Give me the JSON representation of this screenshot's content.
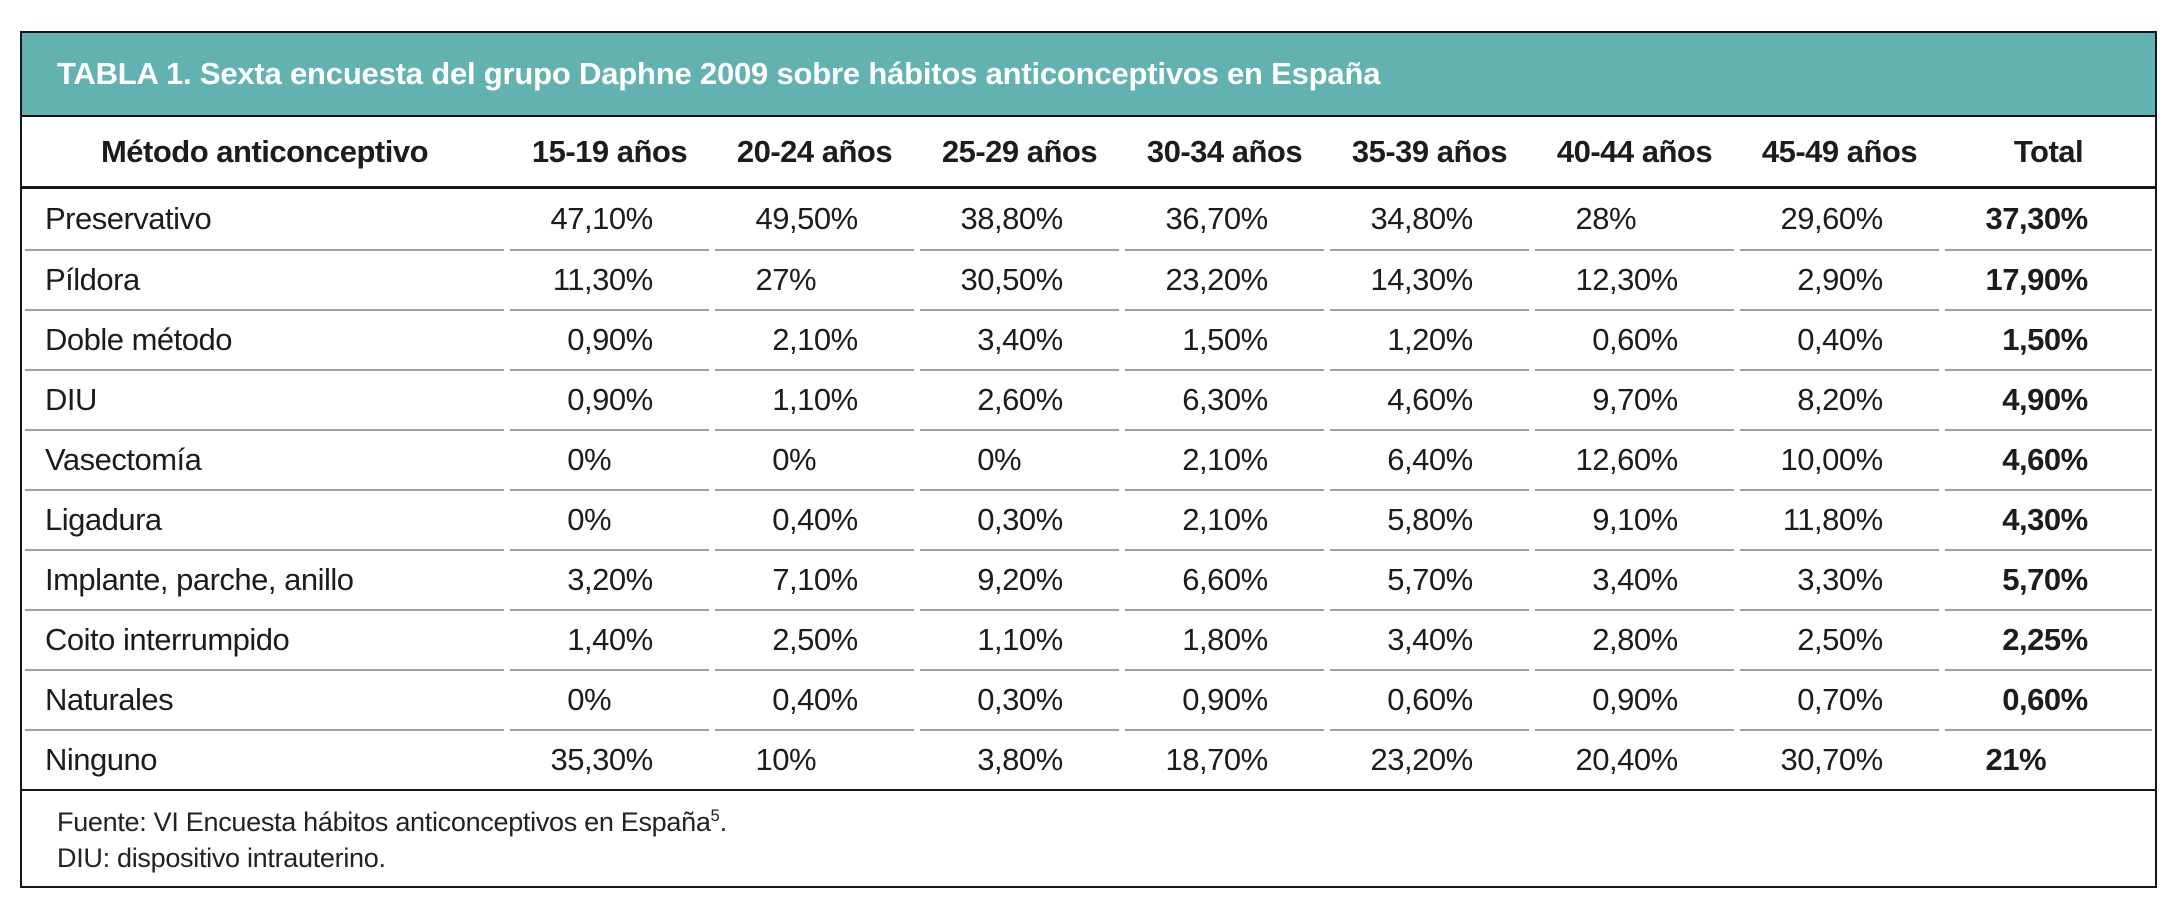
{
  "title": "TABLA 1. Sexta encuesta del grupo Daphne 2009 sobre hábitos anticonceptivos en España",
  "colors": {
    "title_band_bg": "#61b2b1",
    "title_text": "#ffffff",
    "frame_border": "#161616",
    "row_separator": "#9f9f9f",
    "body_text": "#1c1c1c"
  },
  "table": {
    "columns": [
      "Método anticonceptivo",
      "15-19 años",
      "20-24 años",
      "25-29 años",
      "30-34 años",
      "35-39 años",
      "40-44 años",
      "45-49 años",
      "Total"
    ],
    "rows": [
      {
        "label": "Preservativo",
        "values": [
          "47,10%",
          "49,50%",
          "38,80%",
          "36,70%",
          "34,80%",
          "28%",
          "29,60%",
          "37,30%"
        ]
      },
      {
        "label": "Píldora",
        "values": [
          "11,30%",
          "27%",
          "30,50%",
          "23,20%",
          "14,30%",
          "12,30%",
          "2,90%",
          "17,90%"
        ]
      },
      {
        "label": "Doble método",
        "values": [
          "0,90%",
          "2,10%",
          "3,40%",
          "1,50%",
          "1,20%",
          "0,60%",
          "0,40%",
          "1,50%"
        ]
      },
      {
        "label": "DIU",
        "values": [
          "0,90%",
          "1,10%",
          "2,60%",
          "6,30%",
          "4,60%",
          "9,70%",
          "8,20%",
          "4,90%"
        ]
      },
      {
        "label": "Vasectomía",
        "values": [
          "0%",
          "0%",
          "0%",
          "2,10%",
          "6,40%",
          "12,60%",
          "10,00%",
          "4,60%"
        ]
      },
      {
        "label": "Ligadura",
        "values": [
          "0%",
          "0,40%",
          "0,30%",
          "2,10%",
          "5,80%",
          "9,10%",
          "11,80%",
          "4,30%"
        ]
      },
      {
        "label": "Implante, parche, anillo",
        "values": [
          "3,20%",
          "7,10%",
          "9,20%",
          "6,60%",
          "5,70%",
          "3,40%",
          "3,30%",
          "5,70%"
        ]
      },
      {
        "label": "Coito interrumpido",
        "values": [
          "1,40%",
          "2,50%",
          "1,10%",
          "1,80%",
          "3,40%",
          "2,80%",
          "2,50%",
          "2,25%"
        ]
      },
      {
        "label": "Naturales",
        "values": [
          "0%",
          "0,40%",
          "0,30%",
          "0,90%",
          "0,60%",
          "0,90%",
          "0,70%",
          "0,60%"
        ]
      },
      {
        "label": "Ninguno",
        "values": [
          "35,30%",
          "10%",
          "3,80%",
          "18,70%",
          "23,20%",
          "20,40%",
          "30,70%",
          "21%"
        ]
      }
    ]
  },
  "footnotes": {
    "fuente": {
      "text": "Fuente: VI Encuesta hábitos anticonceptivos en España",
      "sup": "5",
      "dot": "."
    },
    "abbrev": "DIU: dispositivo intrauterino."
  }
}
